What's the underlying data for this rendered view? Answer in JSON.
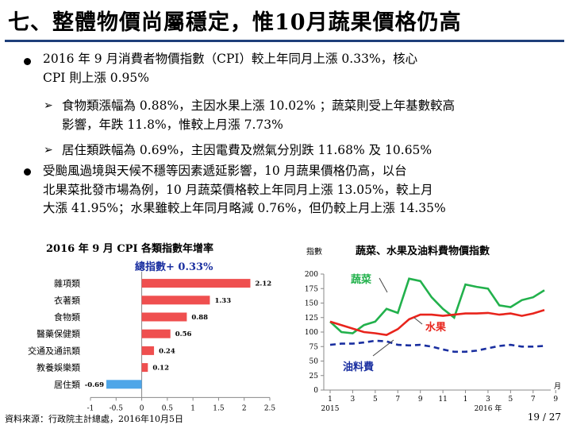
{
  "title": "七、整體物價尚屬穩定，惟10月蔬果價格仍高",
  "bullets": [
    {
      "lines": [
        "2016 年 9 月消費者物價指數（CPI）較上年同月上漲 0.33%，核心",
        "CPI 則上漲 0.95%"
      ]
    },
    {
      "sub": true,
      "lines": [
        "食物類漲幅為 0.88%，主因水果上漲 10.02% ；蔬菜則受上年基數較高",
        "影響，年跌 11.8%，惟較上月漲 7.73%"
      ]
    },
    {
      "sub": true,
      "lines": [
        "居住類跌幅為 0.69%，主因電費及燃氣分別跌 11.68% 及 10.65%"
      ]
    },
    {
      "lines": [
        "受颱風過境與天候不穩等因素遞延影響，10 月蔬果價格仍高，以台",
        "北果菜批發市場為例，10 月蔬菜價格較上年同月上漲 13.05%，較上月",
        "大漲 41.95%；水果雖較上年同月略減 0.76%，但仍較上月上漲 14.35%"
      ]
    }
  ],
  "source": "資料來源：行政院主計總處，2016年10月5日",
  "page": "19 / 27",
  "chart_data": [
    {
      "type": "bar",
      "orientation": "horizontal",
      "title": "2016 年 9 月 CPI 各類指數年增率",
      "annotation": "總指數+ 0.33%",
      "categories": [
        "雜項類",
        "衣著類",
        "食物類",
        "醫藥保健類",
        "交通及通訊類",
        "教養娛樂類",
        "居住類"
      ],
      "values": [
        2.12,
        1.33,
        0.88,
        0.56,
        0.24,
        0.12,
        -0.69
      ],
      "value_labels": [
        "2.12",
        "1.33",
        "0.88",
        "0.56",
        "0.24",
        "0.12",
        "-0.69"
      ],
      "xticks": [
        "-1",
        "-0.5",
        "0",
        "0.5",
        "1",
        "1.5",
        "2",
        "2.5"
      ],
      "xlim": [
        -1,
        2.5
      ],
      "colors": {
        "positive": "#ef4f4f",
        "negative": "#4ea6e8"
      }
    },
    {
      "type": "line",
      "title": "蔬菜、水果及油料費物價指數",
      "ylabel": "指數",
      "ylim": [
        0,
        200
      ],
      "yticks": [
        "0",
        "25",
        "50",
        "75",
        "100",
        "125",
        "150",
        "175",
        "200"
      ],
      "xticks": [
        "1",
        "3",
        "5",
        "7",
        "9",
        "11",
        "1",
        "3",
        "5",
        "7",
        "9"
      ],
      "xunit": "月",
      "year_labels": [
        "2015",
        "2016 年"
      ],
      "series": [
        {
          "name": "蔬菜",
          "color": "#22b14c",
          "style": "solid",
          "values": [
            118,
            100,
            98,
            112,
            118,
            140,
            133,
            192,
            188,
            160,
            140,
            125,
            182,
            178,
            175,
            146,
            143,
            155,
            160,
            172
          ]
        },
        {
          "name": "水果",
          "color": "#e8241c",
          "style": "solid",
          "values": [
            118,
            112,
            106,
            100,
            98,
            95,
            105,
            122,
            130,
            130,
            128,
            130,
            132,
            132,
            133,
            130,
            132,
            128,
            132,
            138
          ]
        },
        {
          "name": "油料費",
          "color": "#1a2fa0",
          "style": "dashed",
          "values": [
            78,
            80,
            80,
            82,
            85,
            84,
            78,
            77,
            78,
            75,
            70,
            66,
            66,
            68,
            72,
            76,
            78,
            75,
            75,
            76
          ]
        }
      ]
    }
  ]
}
